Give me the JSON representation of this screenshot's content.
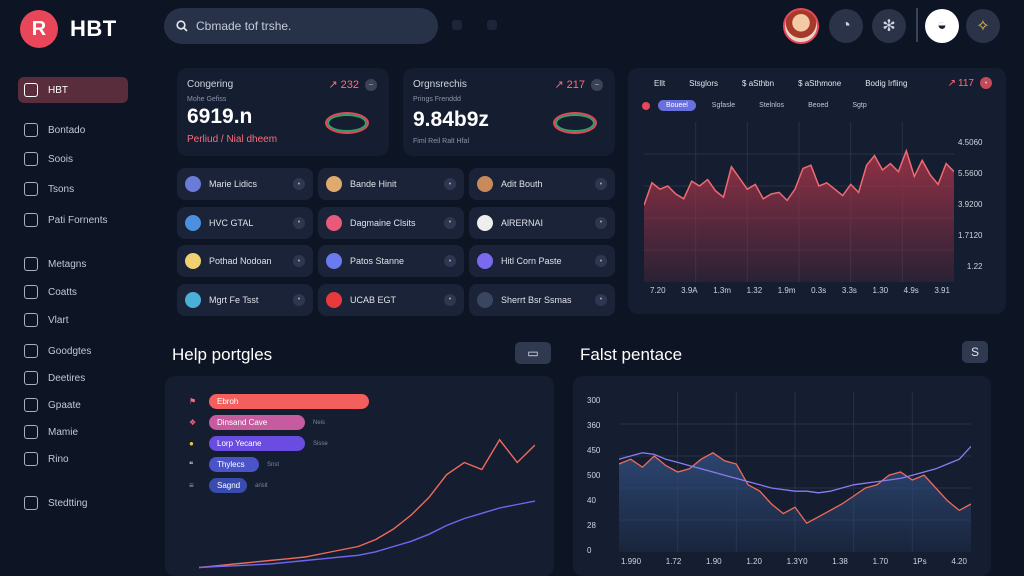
{
  "brand": {
    "logo_letter": "R",
    "name": "HBT"
  },
  "search": {
    "text": "Cbmade tof trshe."
  },
  "top_icons": {
    "clock": "◔",
    "gear": "✻",
    "face": "◒",
    "compass": "✧"
  },
  "sidebar": {
    "items": [
      {
        "label": "HBT",
        "active": true
      },
      {
        "label": "Bontado"
      },
      {
        "label": "Soois"
      },
      {
        "label": "Tsons"
      },
      {
        "label": "Pati Fornents"
      },
      {
        "label": "Metagns"
      },
      {
        "label": "Coatts"
      },
      {
        "label": "Vlart"
      },
      {
        "label": "Goodgtes"
      },
      {
        "label": "Deetires"
      },
      {
        "label": "Gpaate"
      },
      {
        "label": "Mamie"
      },
      {
        "label": "Rino"
      },
      {
        "label": "Stedtting"
      }
    ]
  },
  "kpi": [
    {
      "label": "Congering",
      "sub": "Mohe Gefiss",
      "value": "6919.n",
      "delta": "232",
      "foot": "Perliud / Nial dheem"
    },
    {
      "label": "Orgnsrechis",
      "sub": "Prings Frenddd",
      "value": "9.84b9z",
      "delta": "217",
      "foot": "Fiml Reil Ralt Hfal"
    }
  ],
  "assets": [
    {
      "name": "Marie Lidics",
      "color": "#6b7bd8"
    },
    {
      "name": "Bande Hinit",
      "color": "#e0a96d"
    },
    {
      "name": "Adit Bouth",
      "color": "#c98a5a"
    },
    {
      "name": "HVC GTAL",
      "color": "#4a8fe0"
    },
    {
      "name": "Dagmaine Clsits",
      "color": "#e85a7a"
    },
    {
      "name": "AlRERNAI",
      "color": "#eeeeee"
    },
    {
      "name": "Pothad Nodoan",
      "color": "#f0d070"
    },
    {
      "name": "Patos Stanne",
      "color": "#6a7af0"
    },
    {
      "name": "Hitl Corn Paste",
      "color": "#7a6af0"
    },
    {
      "name": "Mgrt Fe Tsst",
      "color": "#4ab0d8"
    },
    {
      "name": "UCAB EGT",
      "color": "#e83a3a"
    },
    {
      "name": "Sherrt Bsr Ssmas",
      "color": "#3a4560"
    }
  ],
  "big_chart": {
    "tabs": [
      "Ellt",
      "Stsglors",
      "$ aSthbn",
      "$ aSthmone",
      "Bodig Irfling"
    ],
    "counter": "117",
    "pills": [
      "Boueel",
      "Sgfasle",
      "Stelnlos",
      "Beoed",
      "Sgtp"
    ],
    "y_labels": [
      "4.5060",
      "5.5600",
      "3.9200",
      "1.7120",
      "1.22"
    ],
    "x_labels": [
      "7.20",
      "3.9A",
      "1.3m",
      "1.32",
      "1.9m",
      "0.3s",
      "3.3s",
      "1.30",
      "4.9s",
      "3.91"
    ],
    "chart_data": {
      "type": "area",
      "title": "",
      "x": [
        0,
        1,
        2,
        3,
        4,
        5,
        6,
        7,
        8,
        9,
        10,
        11,
        12,
        13,
        14,
        15,
        16,
        17,
        18,
        19,
        20,
        21,
        22,
        23,
        24,
        25,
        26,
        27,
        28,
        29,
        30,
        31,
        32,
        33,
        34,
        35,
        36,
        37,
        38,
        39
      ],
      "series": [
        {
          "name": "main",
          "values": [
            48,
            62,
            58,
            60,
            55,
            52,
            63,
            60,
            64,
            57,
            53,
            72,
            65,
            58,
            61,
            52,
            55,
            56,
            51,
            58,
            71,
            73,
            60,
            62,
            58,
            54,
            61,
            56,
            73,
            79,
            70,
            74,
            69,
            82,
            66,
            76,
            67,
            61,
            74,
            69
          ]
        }
      ],
      "ylim": [
        0,
        100
      ]
    }
  },
  "help_section": {
    "title": "Help portgles",
    "btn": "▭",
    "bars": [
      {
        "label": "Ebroh",
        "value": 100,
        "color": "#f25f5c",
        "icon": "⚑",
        "val_text": ""
      },
      {
        "label": "Dinsand Cave",
        "value": 58,
        "color": "#c75ba0",
        "icon": "❖",
        "val_text": "Neis"
      },
      {
        "label": "Lorp Yecane",
        "value": 58,
        "color": "#6a4de0",
        "icon": "●",
        "val_text": "Sisse"
      },
      {
        "label": "Thylecs",
        "value": 30,
        "color": "#4a54c8",
        "icon": "❝",
        "val_text": "Snst"
      },
      {
        "label": "Sagnd",
        "value": 24,
        "color": "#3a4bb0",
        "icon": "≡",
        "val_text": "arisit"
      }
    ],
    "chart_data": {
      "type": "line",
      "x": [
        0,
        1,
        2,
        3,
        4,
        5,
        6,
        7,
        8,
        9,
        10,
        11,
        12,
        13,
        14,
        15,
        16,
        17,
        18,
        19
      ],
      "series": [
        {
          "name": "red",
          "values": [
            2,
            3,
            4,
            5,
            6,
            7,
            8,
            10,
            12,
            14,
            18,
            24,
            32,
            42,
            55,
            62,
            58,
            75,
            62,
            72
          ]
        },
        {
          "name": "blue",
          "values": [
            2,
            2.5,
            3,
            3.5,
            4,
            5,
            6,
            7,
            8,
            9,
            11,
            14,
            17,
            21,
            26,
            30,
            33,
            36,
            38,
            40
          ]
        }
      ],
      "ylim": [
        0,
        100
      ]
    }
  },
  "fast_section": {
    "title": "Falst pentace",
    "btn": "S",
    "y_labels": [
      "300",
      "360",
      "450",
      "500",
      "40",
      "28",
      "0"
    ],
    "x_labels": [
      "1.990",
      "1.72",
      "1.90",
      "1.20",
      "1.3Y0",
      "1.38",
      "1.70",
      "1Ps",
      "4.20"
    ],
    "chart_data": {
      "type": "area",
      "x": [
        0,
        1,
        2,
        3,
        4,
        5,
        6,
        7,
        8,
        9,
        10,
        11,
        12,
        13,
        14,
        15,
        16,
        17,
        18,
        19,
        20,
        21,
        22,
        23,
        24,
        25,
        26,
        27,
        28,
        29,
        30
      ],
      "series": [
        {
          "name": "red",
          "values": [
            55,
            58,
            53,
            60,
            54,
            50,
            52,
            58,
            62,
            57,
            55,
            42,
            38,
            30,
            24,
            28,
            18,
            22,
            26,
            30,
            35,
            40,
            42,
            48,
            50,
            45,
            48,
            40,
            32,
            26,
            30
          ]
        },
        {
          "name": "blue",
          "values": [
            58,
            60,
            62,
            61,
            58,
            56,
            54,
            52,
            50,
            48,
            46,
            44,
            42,
            40,
            39,
            38,
            38,
            37,
            38,
            40,
            42,
            43,
            44,
            45,
            46,
            48,
            50,
            52,
            55,
            58,
            66
          ]
        }
      ],
      "ylim": [
        0,
        100
      ]
    }
  }
}
